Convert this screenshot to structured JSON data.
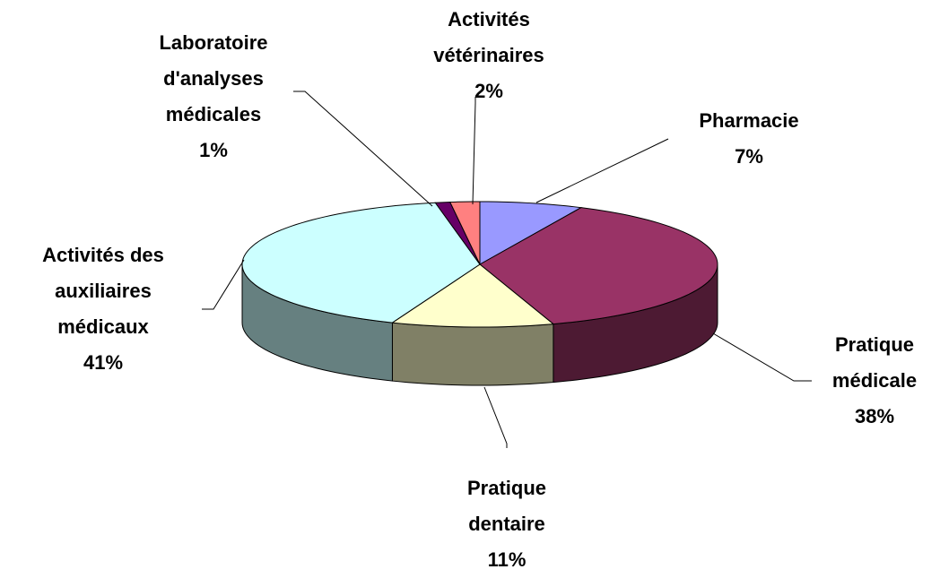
{
  "chart_data": {
    "type": "pie3d",
    "categories": [
      "Pharmacie",
      "Pratique médicale",
      "Pratique dentaire",
      "Activités des auxiliaires médicaux",
      "Laboratoire d'analyses médicales",
      "Activités vétérinaires"
    ],
    "values": [
      7,
      38,
      11,
      41,
      1,
      2
    ],
    "value_labels": [
      "7%",
      "38%",
      "11%",
      "41%",
      "1%",
      "2%"
    ],
    "colors": [
      "#9999ff",
      "#993366",
      "#ffffcc",
      "#ccffff",
      "#660066",
      "#ff8080"
    ]
  }
}
